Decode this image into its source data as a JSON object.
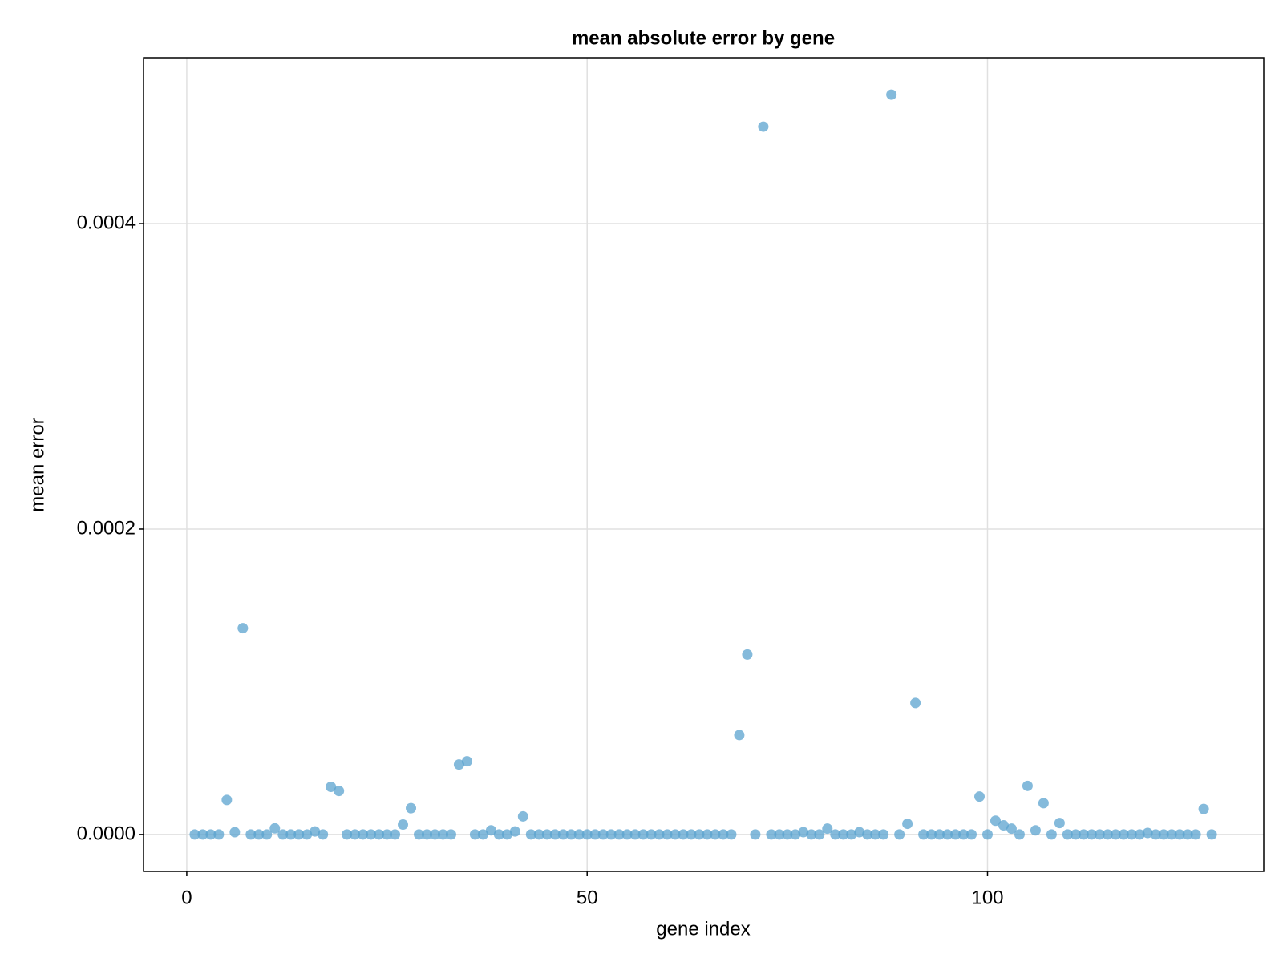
{
  "chart_data": {
    "type": "scatter",
    "title": "mean absolute error by gene",
    "x_label": "gene index",
    "y_label": "mean error",
    "x": [
      1,
      2,
      3,
      4,
      5,
      6,
      7,
      8,
      9,
      10,
      11,
      12,
      13,
      14,
      15,
      16,
      17,
      18,
      19,
      20,
      21,
      22,
      23,
      24,
      25,
      26,
      27,
      28,
      29,
      30,
      31,
      32,
      33,
      34,
      35,
      36,
      37,
      38,
      39,
      40,
      41,
      42,
      43,
      44,
      45,
      46,
      47,
      48,
      49,
      50,
      51,
      52,
      53,
      54,
      55,
      56,
      57,
      58,
      59,
      60,
      61,
      62,
      63,
      64,
      65,
      66,
      67,
      68,
      69,
      70,
      71,
      72,
      73,
      74,
      75,
      76,
      77,
      78,
      79,
      80,
      81,
      82,
      83,
      84,
      85,
      86,
      87,
      88,
      89,
      90,
      91,
      92,
      93,
      94,
      95,
      96,
      97,
      98,
      99,
      100,
      101,
      102,
      103,
      104,
      105,
      106,
      107,
      108,
      109,
      110,
      111,
      112,
      113,
      114,
      115,
      116,
      117,
      118,
      119,
      120,
      121,
      122,
      123,
      124,
      125,
      126,
      127,
      128
    ],
    "values": [
      0,
      0,
      0,
      0,
      2.26e-05,
      1.5e-06,
      0.0001351,
      0,
      0,
      0,
      4e-06,
      0,
      0,
      0,
      0,
      2e-06,
      0,
      3.12e-05,
      2.85e-05,
      0,
      0,
      0,
      0,
      0,
      0,
      0,
      6.5e-06,
      1.72e-05,
      0,
      0,
      0,
      0,
      0,
      4.58e-05,
      4.79e-05,
      0,
      0,
      2.7e-06,
      0,
      0,
      2e-06,
      1.18e-05,
      0,
      0,
      0,
      0,
      0,
      0,
      0,
      0,
      0,
      0,
      0,
      0,
      0,
      0,
      0,
      0,
      0,
      0,
      0,
      0,
      0,
      0,
      0,
      0,
      0,
      0,
      6.51e-05,
      0.0001179,
      0,
      0.0004635,
      0,
      0,
      0,
      0,
      1.5e-06,
      0,
      0,
      3.8e-06,
      0,
      0,
      0,
      1.5e-06,
      0,
      0,
      0,
      0.0004845,
      0,
      7e-06,
      8.61e-05,
      0,
      0,
      0,
      0,
      0,
      0,
      0,
      2.48e-05,
      0,
      9e-06,
      6e-06,
      3.8e-06,
      0,
      3.18e-05,
      2.7e-06,
      2.05e-05,
      0,
      7.5e-06,
      0,
      0,
      0,
      0,
      0,
      0,
      0,
      0,
      0,
      0,
      1e-06,
      0,
      0,
      0,
      0,
      0,
      0,
      1.67e-05,
      0
    ],
    "color": "#5ba3cf",
    "xlim": [
      -5.4,
      134.5
    ],
    "ylim": [
      -2.42e-05,
      0.0005087
    ],
    "xticks": [
      0,
      50,
      100
    ],
    "yticks": [
      {
        "value": 0,
        "label": "0.0000"
      },
      0.0002,
      0.0004
    ],
    "grid": true
  }
}
